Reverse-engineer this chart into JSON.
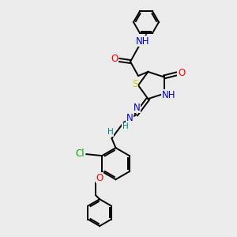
{
  "bg_color": "#ebebeb",
  "atom_colors": {
    "N": "#0000cc",
    "O": "#ff0000",
    "S": "#cccc00",
    "Cl": "#00aa00",
    "C": "#000000",
    "H": "#008080"
  },
  "bond_color": "#000000",
  "bond_width": 1.4,
  "font_size": 8.5
}
